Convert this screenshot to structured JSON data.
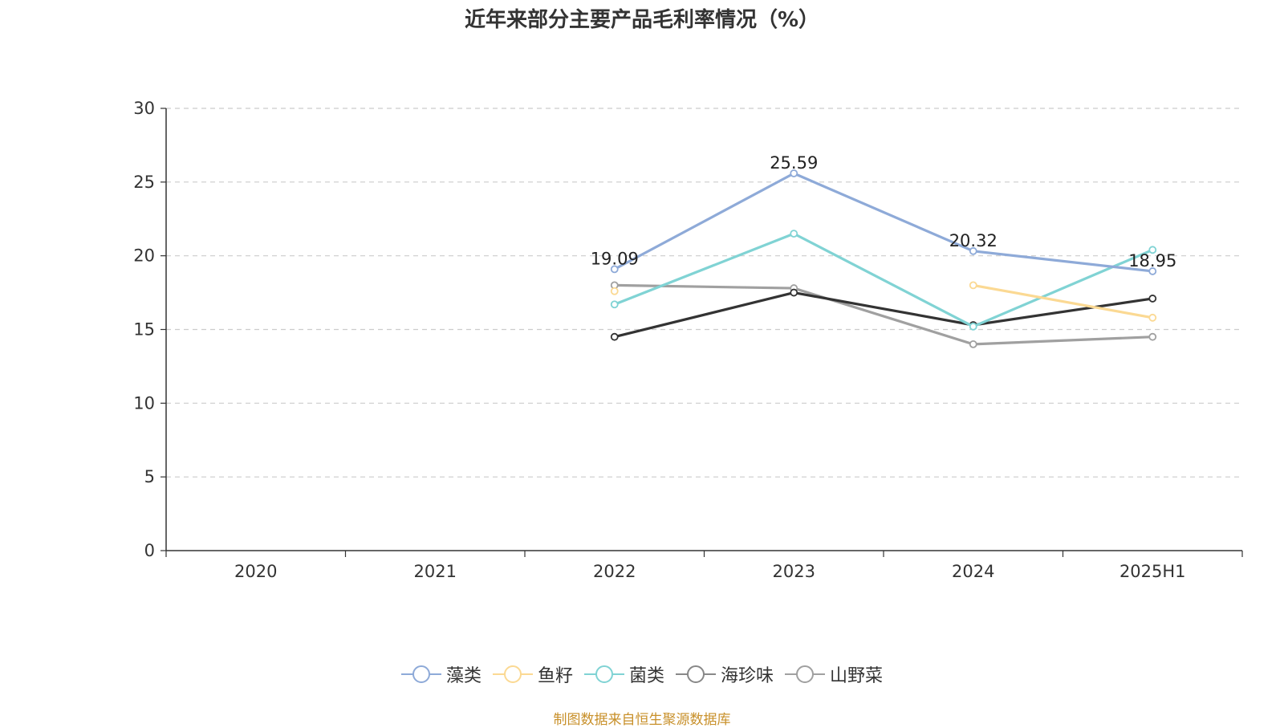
{
  "chart_data": {
    "type": "line",
    "title": "近年来部分主要产品毛利率情况（%）",
    "xlabel": "",
    "ylabel": "",
    "categories": [
      "2020",
      "2021",
      "2022",
      "2023",
      "2024",
      "2025H1"
    ],
    "ylim": [
      0,
      30
    ],
    "yticks": [
      0,
      5,
      10,
      15,
      20,
      25,
      30
    ],
    "grid": true,
    "legend_position": "bottom",
    "series": [
      {
        "name": "藻类",
        "color": "#8eaad8",
        "values": [
          null,
          null,
          19.09,
          25.59,
          20.32,
          18.95
        ],
        "labels": [
          "",
          "",
          "19.09",
          "25.59",
          "20.32",
          "18.95"
        ]
      },
      {
        "name": "鱼籽",
        "color": "#fbd993",
        "values": [
          null,
          null,
          17.6,
          null,
          18.0,
          15.8
        ],
        "labels": []
      },
      {
        "name": "菌类",
        "color": "#80d3d4",
        "values": [
          null,
          null,
          16.7,
          21.5,
          15.2,
          20.4
        ],
        "labels": []
      },
      {
        "name": "海珍味",
        "color": "#333333",
        "values": [
          null,
          null,
          14.5,
          17.5,
          15.3,
          17.1
        ],
        "labels": []
      },
      {
        "name": "山野菜",
        "color": "#a0a0a0",
        "values": [
          null,
          null,
          18.0,
          17.8,
          14.0,
          14.5
        ],
        "labels": []
      }
    ],
    "legend_order": [
      0,
      1,
      2,
      3,
      4
    ],
    "legend_marker_colors": [
      "#8eaad8",
      "#fbd993",
      "#80d3d4",
      "#888888",
      "#a0a0a0"
    ]
  },
  "footer": {
    "source": "制图数据来自恒生聚源数据库"
  }
}
